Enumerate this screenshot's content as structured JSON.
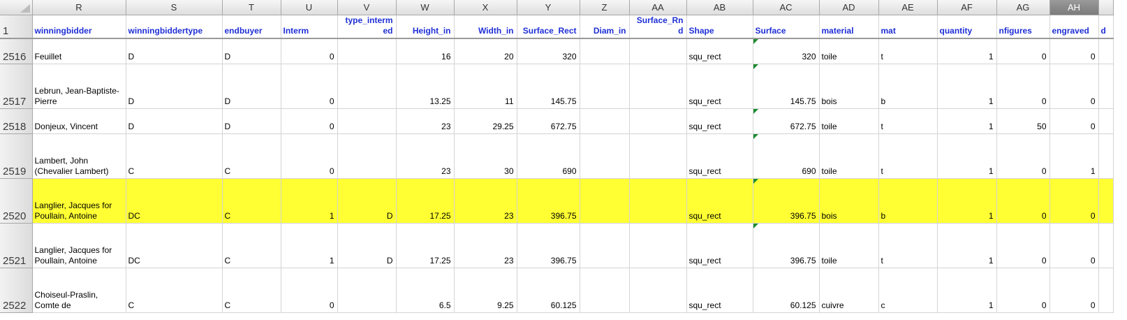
{
  "sheet": {
    "columns": [
      "R",
      "S",
      "T",
      "U",
      "V",
      "W",
      "X",
      "Y",
      "Z",
      "AA",
      "AB",
      "AC",
      "AD",
      "AE",
      "AF",
      "AG",
      "AH",
      ""
    ],
    "selected_column": "AH",
    "header_row": {
      "row_number": "1",
      "labels": [
        "winningbidder",
        "winningbiddertype",
        "endbuyer",
        "Interm",
        "type_interm ed",
        "Height_in",
        "Width_in",
        "Surface_Rect",
        "Diam_in",
        "Surface_Rn d",
        "Shape",
        "Surface",
        "material",
        "mat",
        "quantity",
        "nfigures",
        "engraved",
        "d"
      ]
    },
    "rows": [
      {
        "num": "2516",
        "cells": [
          "Feuillet",
          "D",
          "D",
          "0",
          "",
          "16",
          "20",
          "320",
          "",
          "",
          "squ_rect",
          "320",
          "toile",
          "t",
          "1",
          "0",
          "0",
          ""
        ]
      },
      {
        "num": "2517",
        "cells": [
          "Lebrun, Jean-Baptiste-Pierre",
          "D",
          "D",
          "0",
          "",
          "13.25",
          "11",
          "145.75",
          "",
          "",
          "squ_rect",
          "145.75",
          "bois",
          "b",
          "1",
          "0",
          "0",
          ""
        ]
      },
      {
        "num": "2518",
        "cells": [
          "Donjeux, Vincent",
          "D",
          "D",
          "0",
          "",
          "23",
          "29.25",
          "672.75",
          "",
          "",
          "squ_rect",
          "672.75",
          "toile",
          "t",
          "1",
          "50",
          "0",
          ""
        ]
      },
      {
        "num": "2519",
        "cells": [
          "Lambert, John (Chevalier Lambert)",
          "C",
          "C",
          "0",
          "",
          "23",
          "30",
          "690",
          "",
          "",
          "squ_rect",
          "690",
          "toile",
          "t",
          "1",
          "0",
          "1",
          ""
        ]
      },
      {
        "num": "2520",
        "cells": [
          "Langlier, Jacques for Poullain, Antoine",
          "DC",
          "C",
          "1",
          "D",
          "17.25",
          "23",
          "396.75",
          "",
          "",
          "squ_rect",
          "396.75",
          "bois",
          "b",
          "1",
          "0",
          "0",
          ""
        ]
      },
      {
        "num": "2521",
        "cells": [
          "Langlier, Jacques for Poullain, Antoine",
          "DC",
          "C",
          "1",
          "D",
          "17.25",
          "23",
          "396.75",
          "",
          "",
          "squ_rect",
          "396.75",
          "toile",
          "t",
          "1",
          "0",
          "0",
          ""
        ]
      },
      {
        "num": "2522",
        "cells": [
          "Choiseul-Praslin, Comte de",
          "C",
          "C",
          "0",
          "",
          "6.5",
          "9.25",
          "60.125",
          "",
          "",
          "squ_rect",
          "60.125",
          "cuivre",
          "c",
          "1",
          "0",
          "0",
          ""
        ]
      }
    ],
    "highlighted_row": "2520",
    "highlight_color": "#ffff33",
    "header_text_color": "#1f2fd6",
    "comment_marker_color": "#1c8a2e"
  }
}
